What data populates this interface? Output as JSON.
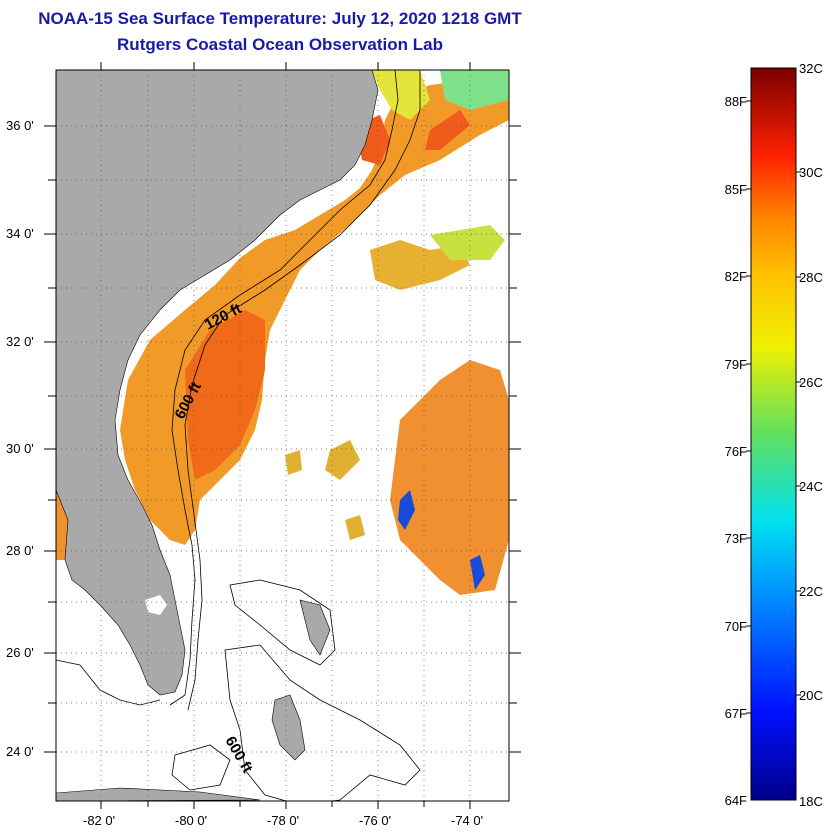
{
  "title": {
    "line1": "NOAA-15 Sea Surface Temperature:  July 12, 2020 1218 GMT",
    "line2": "Rutgers Coastal Ocean Observation Lab"
  },
  "map": {
    "lat_labels": [
      "36 0'",
      "34 0'",
      "32 0'",
      "30 0'",
      "28 0'",
      "26 0'",
      "24 0'"
    ],
    "lon_labels": [
      "-82 0'",
      "-80 0'",
      "-78 0'",
      "-76 0'",
      "-74 0'"
    ],
    "contour_labels": [
      "120 ft",
      "600 ft",
      "600 ft"
    ],
    "colors": {
      "land": "#a9a9a9",
      "frame": "#000000"
    }
  },
  "colorbar": {
    "fahrenheit_labels": [
      "88F",
      "85F",
      "82F",
      "79F",
      "76F",
      "73F",
      "70F",
      "67F",
      "64F"
    ],
    "celsius_labels": [
      "32C",
      "30C",
      "28C",
      "26C",
      "24C",
      "22C",
      "20C",
      "18C"
    ],
    "range_c": [
      18,
      32
    ]
  }
}
